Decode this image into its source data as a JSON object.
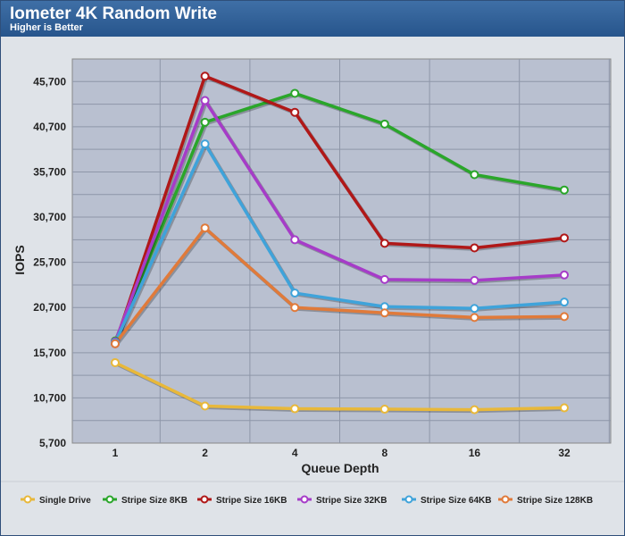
{
  "header": {
    "title": "Iometer 4K Random Write",
    "subtitle": "Higher is Better"
  },
  "chart_data": {
    "type": "line",
    "title": "Iometer 4K Random Write",
    "subtitle": "Higher is Better",
    "xlabel": "Queue Depth",
    "ylabel": "IOPS",
    "categories": [
      "1",
      "2",
      "4",
      "8",
      "16",
      "32"
    ],
    "ylim": [
      5700,
      48200
    ],
    "yticks": [
      5700,
      10700,
      15700,
      20700,
      25700,
      30700,
      35700,
      40700,
      45700
    ],
    "ytick_labels": [
      "5,700",
      "10,700",
      "15,700",
      "20,700",
      "25,700",
      "30,700",
      "35,700",
      "40,700",
      "45,700"
    ],
    "grid": true,
    "legend": "bottom",
    "series": [
      {
        "name": "Single Drive",
        "color": "#e8b83a",
        "values": [
          14600,
          9800,
          9500,
          9450,
          9400,
          9600
        ]
      },
      {
        "name": "Stripe Size 8KB",
        "color": "#2aa62a",
        "values": [
          17000,
          41200,
          44400,
          41000,
          35400,
          33700
        ]
      },
      {
        "name": "Stripe Size 16KB",
        "color": "#b01818",
        "values": [
          16700,
          46300,
          42300,
          27800,
          27300,
          28400
        ]
      },
      {
        "name": "Stripe Size 32KB",
        "color": "#a63cc8",
        "values": [
          16900,
          43600,
          28200,
          23800,
          23700,
          24300
        ]
      },
      {
        "name": "Stripe Size 64KB",
        "color": "#3fa3da",
        "values": [
          16800,
          38800,
          22300,
          20800,
          20600,
          21300
        ]
      },
      {
        "name": "Stripe Size 128KB",
        "color": "#e07a3a",
        "values": [
          16700,
          29500,
          20700,
          20100,
          19600,
          19700
        ]
      }
    ]
  }
}
